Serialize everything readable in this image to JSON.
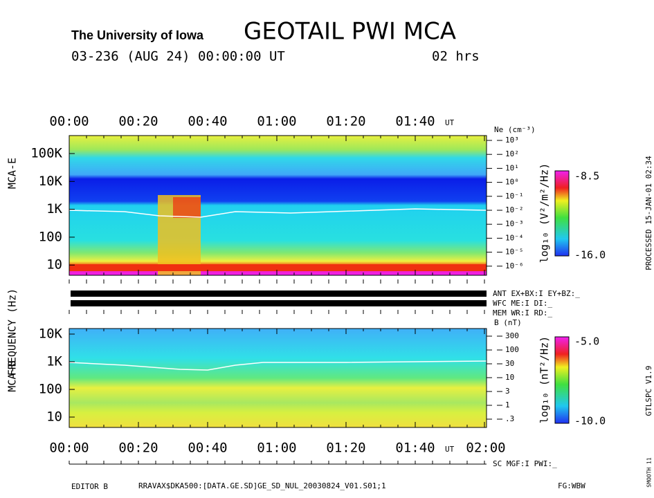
{
  "header": {
    "institution": "The University of Iowa",
    "title": "GEOTAIL PWI MCA",
    "date": "03-236 (AUG 24) 00:00:00 UT",
    "duration": "02 hrs"
  },
  "top_axis": {
    "labels": [
      "00:00",
      "00:20",
      "00:40",
      "01:00",
      "01:20",
      "01:40"
    ],
    "unit": "UT"
  },
  "bottom_axis": {
    "labels": [
      "00:00",
      "00:20",
      "00:40",
      "01:00",
      "01:20",
      "01:40",
      "02:00"
    ],
    "unit": "UT"
  },
  "y_label": "FREQUENCY (Hz)",
  "panel_e": {
    "name": "MCA-E",
    "yticks": [
      "100K",
      "10K",
      "1K",
      "100",
      "10"
    ],
    "right_title": "Ne (cm⁻³)",
    "right_ticks": [
      "10³",
      "10²",
      "10¹",
      "10⁰",
      "10⁻¹",
      "10⁻²",
      "10⁻³",
      "10⁻⁴",
      "10⁻⁵",
      "10⁻⁶"
    ],
    "colorbar": {
      "label": "log₁₀ (V²/m²/Hz)",
      "max": "-8.5",
      "min": "-16.0"
    }
  },
  "status": [
    "ANT EX+BX:I EY+BZ:_",
    "WFC ME:I    DI:_",
    "MEM WR:I    RD:_"
  ],
  "panel_b": {
    "name": "MCA-B",
    "yticks": [
      "10K",
      "1K",
      "100",
      "10"
    ],
    "right_title": "B (nT)",
    "right_ticks": [
      "300",
      "100",
      "30",
      "10",
      "3",
      "1",
      ".3"
    ],
    "colorbar": {
      "label": "log₁₀ (nT²/Hz)",
      "max": "-5.0",
      "min": "-10.0"
    }
  },
  "footer": {
    "sc": "SC MGF:I    PWI:_",
    "editor": "EDITOR B",
    "file": "RRAVAX$DKA500:[DATA.GE.SD]GE_SD_NUL_20030824_V01.S01;1",
    "fg": "FG:WBW"
  },
  "side": {
    "processed": "PROCESSED 15-JAN-01  02:34",
    "version": "GTLSPC   V1.9",
    "smooth": "SMOOTH 11"
  }
}
